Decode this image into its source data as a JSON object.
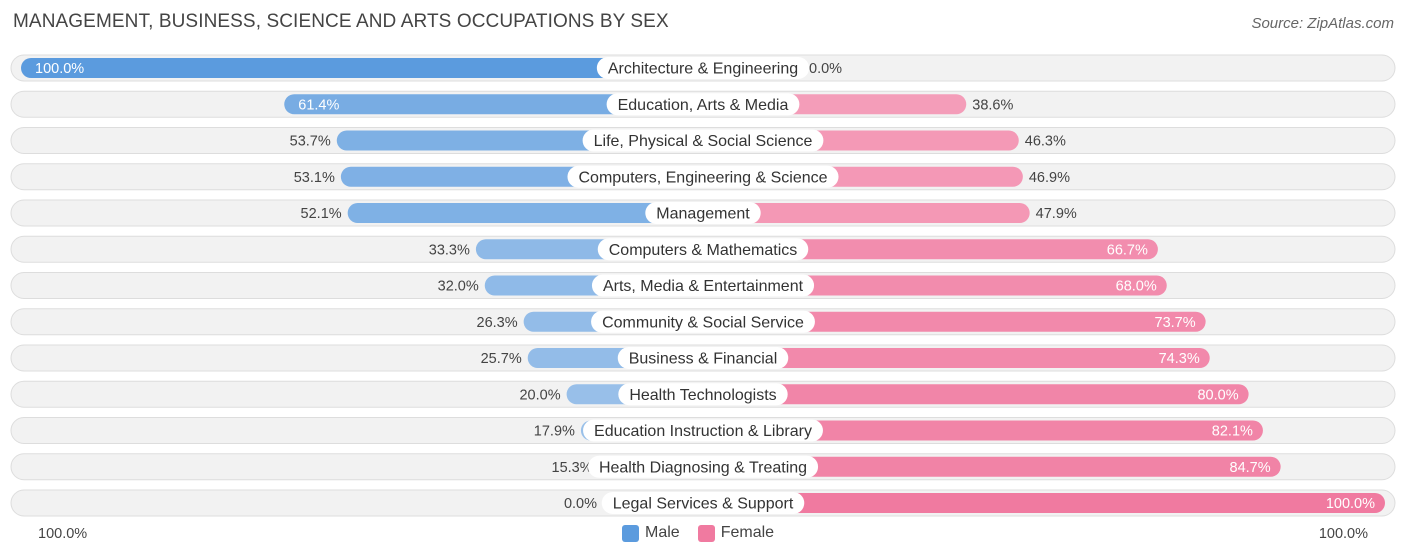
{
  "title": "MANAGEMENT, BUSINESS, SCIENCE AND ARTS OCCUPATIONS BY SEX",
  "source": "Source: ZipAtlas.com",
  "colors": {
    "male_strong": "#5b9bde",
    "male_light": "#a7c8ec",
    "female_strong": "#f07aa0",
    "female_light": "#f7b3c9",
    "row_bg": "#f2f2f2",
    "row_border": "#dddddd"
  },
  "legend": {
    "male": "Male",
    "female": "Female"
  },
  "footer": {
    "left": "100.0%",
    "right": "100.0%"
  },
  "chart_data": {
    "type": "bar",
    "orientation": "horizontal-diverging",
    "title": "MANAGEMENT, BUSINESS, SCIENCE AND ARTS OCCUPATIONS BY SEX",
    "xlim": [
      -100,
      100
    ],
    "categories": [
      "Architecture & Engineering",
      "Education, Arts & Media",
      "Life, Physical & Social Science",
      "Computers, Engineering & Science",
      "Management",
      "Computers & Mathematics",
      "Arts, Media & Entertainment",
      "Community & Social Service",
      "Business & Financial",
      "Health Technologists",
      "Education Instruction & Library",
      "Health Diagnosing & Treating",
      "Legal Services & Support"
    ],
    "series": [
      {
        "name": "Male",
        "values": [
          100.0,
          61.4,
          53.7,
          53.1,
          52.1,
          33.3,
          32.0,
          26.3,
          25.7,
          20.0,
          17.9,
          15.3,
          0.0
        ],
        "labels": [
          "100.0%",
          "61.4%",
          "53.7%",
          "53.1%",
          "52.1%",
          "33.3%",
          "32.0%",
          "26.3%",
          "25.7%",
          "20.0%",
          "17.9%",
          "15.3%",
          "0.0%"
        ]
      },
      {
        "name": "Female",
        "values": [
          0.0,
          38.6,
          46.3,
          46.9,
          47.9,
          66.7,
          68.0,
          73.7,
          74.3,
          80.0,
          82.1,
          84.7,
          100.0
        ],
        "labels": [
          "0.0%",
          "38.6%",
          "46.3%",
          "46.9%",
          "47.9%",
          "66.7%",
          "68.0%",
          "73.7%",
          "74.3%",
          "80.0%",
          "82.1%",
          "84.7%",
          "100.0%"
        ]
      }
    ]
  }
}
